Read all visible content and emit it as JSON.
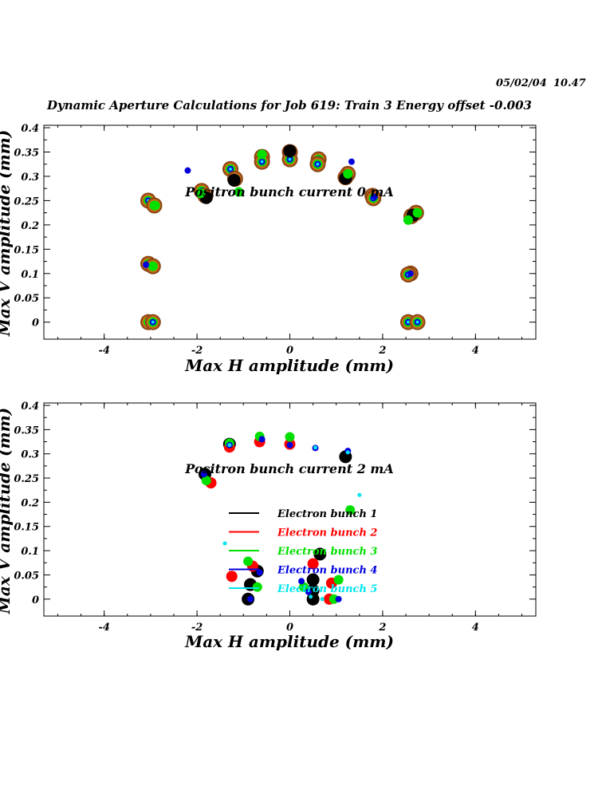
{
  "header": {
    "date": "05/02/04",
    "time": "10.47",
    "title": "Dynamic Aperture Calculations for Job 619:  Train 3   Energy offset  -0.003"
  },
  "colors": {
    "bunch1": "#000000",
    "bunch2": "#ff0000",
    "bunch3": "#00e000",
    "bunch4": "#0000dd",
    "bunch5": "#00e5ee",
    "ring_outer": "#8b4513",
    "ring_mid": "#cc6a1a"
  },
  "legend": [
    {
      "label": "Electron bunch 1",
      "color": "#000000"
    },
    {
      "label": "Electron bunch 2",
      "color": "#ff0000"
    },
    {
      "label": "Electron bunch 3",
      "color": "#00e000"
    },
    {
      "label": "Electron bunch 4",
      "color": "#0000dd"
    },
    {
      "label": "Electron bunch 5",
      "color": "#00e5ee"
    }
  ],
  "chart_data": [
    {
      "type": "scatter",
      "title": "Positron bunch current  0 mA",
      "xlabel": "Max H amplitude (mm)",
      "ylabel": "Max V amplitude (mm)",
      "xlim": [
        -5.3,
        5.3
      ],
      "ylim": [
        -0.035,
        0.405
      ],
      "xticks": [
        -4,
        -2,
        0,
        2,
        4
      ],
      "yticks": [
        0,
        0.05,
        0.1,
        0.15,
        0.2,
        0.25,
        0.3,
        0.35,
        0.4
      ],
      "ytick_labels": [
        "0",
        "0.05",
        "0.1",
        "0.15",
        "0.2",
        "0.25",
        "0.3",
        "0.35",
        "0.4"
      ],
      "ringed_points": [
        {
          "x": -3.05,
          "y": 0.0
        },
        {
          "x": -2.95,
          "y": 0.0
        },
        {
          "x": -3.05,
          "y": 0.12
        },
        {
          "x": -2.95,
          "y": 0.115
        },
        {
          "x": -3.05,
          "y": 0.25
        },
        {
          "x": -2.92,
          "y": 0.24
        },
        {
          "x": -1.9,
          "y": 0.27
        },
        {
          "x": -1.82,
          "y": 0.26
        },
        {
          "x": -1.28,
          "y": 0.315
        },
        {
          "x": -1.18,
          "y": 0.295
        },
        {
          "x": -0.6,
          "y": 0.34
        },
        {
          "x": -0.6,
          "y": 0.33
        },
        {
          "x": 0.0,
          "y": 0.35
        },
        {
          "x": 0.0,
          "y": 0.335
        },
        {
          "x": 0.62,
          "y": 0.335
        },
        {
          "x": 0.6,
          "y": 0.325
        },
        {
          "x": 1.25,
          "y": 0.305
        },
        {
          "x": 1.2,
          "y": 0.298
        },
        {
          "x": 1.78,
          "y": 0.26
        },
        {
          "x": 1.8,
          "y": 0.255
        },
        {
          "x": 2.72,
          "y": 0.225
        },
        {
          "x": 2.62,
          "y": 0.218
        },
        {
          "x": 2.6,
          "y": 0.1
        },
        {
          "x": 2.55,
          "y": 0.098
        },
        {
          "x": 2.55,
          "y": 0.0
        },
        {
          "x": 2.75,
          "y": 0.0
        }
      ],
      "series": [
        {
          "name": "Electron bunch 1",
          "points": [
            {
              "x": 0.0,
              "y": 0.352
            },
            {
              "x": -1.2,
              "y": 0.292
            },
            {
              "x": -1.8,
              "y": 0.256
            },
            {
              "x": 1.2,
              "y": 0.296
            },
            {
              "x": 2.65,
              "y": 0.22
            }
          ]
        },
        {
          "name": "Electron bunch 2",
          "points": []
        },
        {
          "name": "Electron bunch 3",
          "points": [
            {
              "x": -1.1,
              "y": 0.268
            },
            {
              "x": -0.6,
              "y": 0.345
            },
            {
              "x": -1.92,
              "y": 0.265
            },
            {
              "x": 1.25,
              "y": 0.305
            },
            {
              "x": 2.55,
              "y": 0.21
            },
            {
              "x": 2.75,
              "y": 0.225
            },
            {
              "x": -2.95,
              "y": 0.115
            },
            {
              "x": -2.9,
              "y": 0.24
            }
          ]
        },
        {
          "name": "Electron bunch 4",
          "points": [
            {
              "x": -2.2,
              "y": 0.312
            },
            {
              "x": 1.33,
              "y": 0.33
            },
            {
              "x": -3.1,
              "y": 0.118
            },
            {
              "x": 2.6,
              "y": 0.1
            },
            {
              "x": 1.83,
              "y": 0.258
            }
          ]
        },
        {
          "name": "Electron bunch 5",
          "points": []
        }
      ]
    },
    {
      "type": "scatter",
      "title": "Positron bunch current  2 mA",
      "xlabel": "Max H amplitude (mm)",
      "ylabel": "Max V amplitude (mm)",
      "xlim": [
        -5.3,
        5.3
      ],
      "ylim": [
        -0.035,
        0.405
      ],
      "xticks": [
        -4,
        -2,
        0,
        2,
        4
      ],
      "yticks": [
        0,
        0.05,
        0.1,
        0.15,
        0.2,
        0.25,
        0.3,
        0.35,
        0.4
      ],
      "ytick_labels": [
        "0",
        "0.05",
        "0.1",
        "0.15",
        "0.2",
        "0.25",
        "0.3",
        "0.35",
        "0.4"
      ],
      "series": [
        {
          "name": "Electron bunch 1",
          "points": [
            {
              "x": -1.3,
              "y": 0.32
            },
            {
              "x": -1.83,
              "y": 0.258
            },
            {
              "x": 1.2,
              "y": 0.294
            },
            {
              "x": 0.65,
              "y": 0.093
            },
            {
              "x": 0.5,
              "y": 0.04
            },
            {
              "x": 0.5,
              "y": 0.018
            },
            {
              "x": 0.5,
              "y": 0.0
            },
            {
              "x": -0.85,
              "y": 0.03
            },
            {
              "x": -0.7,
              "y": 0.058
            },
            {
              "x": -0.9,
              "y": 0.0
            }
          ]
        },
        {
          "name": "Electron bunch 2",
          "points": [
            {
              "x": -1.3,
              "y": 0.314
            },
            {
              "x": -1.7,
              "y": 0.24
            },
            {
              "x": -0.65,
              "y": 0.325
            },
            {
              "x": 0.0,
              "y": 0.32
            },
            {
              "x": -1.25,
              "y": 0.047
            },
            {
              "x": -0.8,
              "y": 0.068
            },
            {
              "x": 0.5,
              "y": 0.073
            },
            {
              "x": 0.9,
              "y": 0.033
            },
            {
              "x": 0.85,
              "y": 0.0
            }
          ]
        },
        {
          "name": "Electron bunch 3",
          "points": [
            {
              "x": -0.65,
              "y": 0.336
            },
            {
              "x": 0.0,
              "y": 0.335
            },
            {
              "x": -1.3,
              "y": 0.322
            },
            {
              "x": -1.8,
              "y": 0.245
            },
            {
              "x": 1.3,
              "y": 0.184
            },
            {
              "x": -0.9,
              "y": 0.078
            },
            {
              "x": 1.05,
              "y": 0.04
            },
            {
              "x": 0.3,
              "y": 0.025
            },
            {
              "x": -0.7,
              "y": 0.025
            },
            {
              "x": 0.95,
              "y": 0.0
            }
          ]
        },
        {
          "name": "Electron bunch 4",
          "points": [
            {
              "x": -1.3,
              "y": 0.318
            },
            {
              "x": -0.6,
              "y": 0.33
            },
            {
              "x": 0.0,
              "y": 0.318
            },
            {
              "x": 0.55,
              "y": 0.312
            },
            {
              "x": 1.25,
              "y": 0.306
            },
            {
              "x": -1.85,
              "y": 0.258
            },
            {
              "x": 0.25,
              "y": 0.037
            },
            {
              "x": 0.4,
              "y": 0.015
            },
            {
              "x": 1.05,
              "y": 0.0
            },
            {
              "x": -0.85,
              "y": 0.0
            },
            {
              "x": -0.65,
              "y": 0.055
            }
          ]
        },
        {
          "name": "Electron bunch 5",
          "points": [
            {
              "x": 1.5,
              "y": 0.215
            },
            {
              "x": -1.4,
              "y": 0.115
            },
            {
              "x": 0.55,
              "y": 0.313
            },
            {
              "x": 1.25,
              "y": 0.303
            },
            {
              "x": -1.3,
              "y": 0.318
            },
            {
              "x": 0.45,
              "y": 0.005
            },
            {
              "x": 0.7,
              "y": 0.0
            }
          ]
        }
      ]
    }
  ]
}
